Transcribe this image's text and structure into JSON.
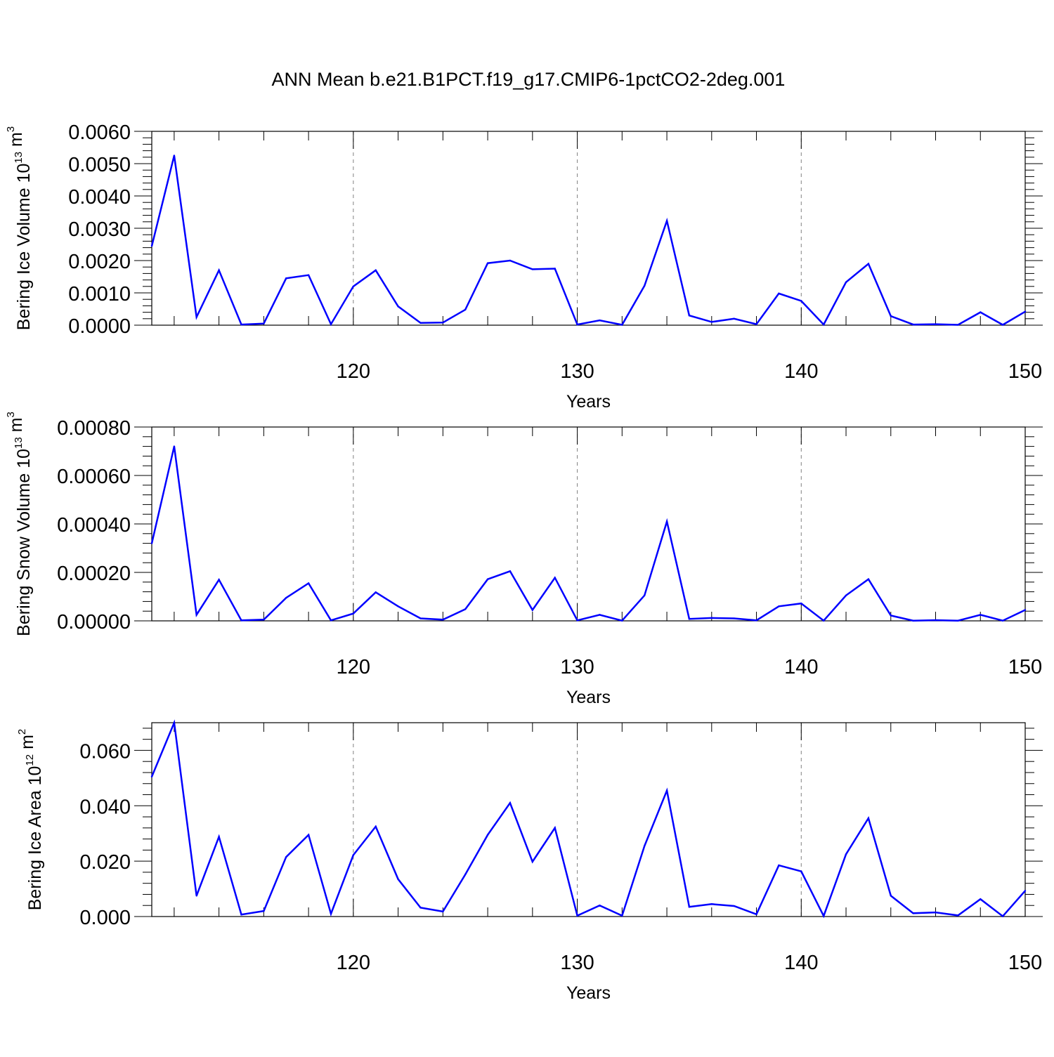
{
  "title": "ANN Mean b.e21.B1PCT.f19_g17.CMIP6-1pctCO2-2deg.001",
  "colors": {
    "line": "#0000ff",
    "axis": "#000000",
    "grid": "#808080"
  },
  "chart_data": [
    {
      "type": "line",
      "ylabel_prefix": "Bering Ice Volume 10",
      "ylabel_exp": "13",
      "ylabel_unit": " m",
      "ylabel_unit_exp": "3",
      "xlabel": "Years",
      "xlim": [
        111,
        150
      ],
      "ylim": [
        0,
        0.006
      ],
      "grid": "vertical dashed at major x ticks",
      "x_ticks": [
        "120",
        "130",
        "140",
        "150"
      ],
      "y_ticks": [
        "0.0000",
        "0.0010",
        "0.0020",
        "0.0030",
        "0.0040",
        "0.0050",
        "0.0060"
      ],
      "x": [
        111,
        112,
        113,
        114,
        115,
        116,
        117,
        118,
        119,
        120,
        121,
        122,
        123,
        124,
        125,
        126,
        127,
        128,
        129,
        130,
        131,
        132,
        133,
        134,
        135,
        136,
        137,
        138,
        139,
        140,
        141,
        142,
        143,
        144,
        145,
        146,
        147,
        148,
        149,
        150
      ],
      "values": [
        0.00245,
        0.00525,
        0.00025,
        0.0017,
        2e-05,
        5e-05,
        0.00145,
        0.00155,
        3e-05,
        0.0012,
        0.0017,
        0.00058,
        7e-05,
        8e-05,
        0.00048,
        0.00192,
        0.002,
        0.00173,
        0.00175,
        2e-05,
        0.00015,
        1e-05,
        0.00122,
        0.00323,
        0.0003,
        0.0001,
        0.0002,
        3e-05,
        0.00098,
        0.00075,
        2e-05,
        0.00133,
        0.0019,
        0.00028,
        2e-05,
        3e-05,
        1e-05,
        0.0004,
        1e-05,
        0.00042
      ]
    },
    {
      "type": "line",
      "ylabel_prefix": "Bering Snow Volume 10",
      "ylabel_exp": "13",
      "ylabel_unit": " m",
      "ylabel_unit_exp": "3",
      "xlabel": "Years",
      "xlim": [
        111,
        150
      ],
      "ylim": [
        0,
        0.0008
      ],
      "grid": "vertical dashed at major x ticks",
      "x_ticks": [
        "120",
        "130",
        "140",
        "150"
      ],
      "y_ticks": [
        "0.00000",
        "0.00020",
        "0.00040",
        "0.00060",
        "0.00080"
      ],
      "x": [
        111,
        112,
        113,
        114,
        115,
        116,
        117,
        118,
        119,
        120,
        121,
        122,
        123,
        124,
        125,
        126,
        127,
        128,
        129,
        130,
        131,
        132,
        133,
        134,
        135,
        136,
        137,
        138,
        139,
        140,
        141,
        142,
        143,
        144,
        145,
        146,
        147,
        148,
        149,
        150
      ],
      "values": [
        0.00032,
        0.00072,
        2.5e-05,
        0.00017,
        2e-06,
        5e-06,
        9.5e-05,
        0.000155,
        2e-06,
        3e-05,
        0.000118,
        6e-05,
        1e-05,
        5e-06,
        4.8e-05,
        0.000172,
        0.000205,
        4.5e-05,
        0.000178,
        2e-06,
        2.5e-05,
        1e-06,
        0.000105,
        0.00041,
        8e-06,
        1.2e-05,
        1e-05,
        2e-06,
        6e-05,
        7.2e-05,
        1e-06,
        0.000105,
        0.000172,
        2.2e-05,
        1e-06,
        3e-06,
        1e-06,
        2.5e-05,
        1e-06,
        4.5e-05
      ]
    },
    {
      "type": "line",
      "ylabel_prefix": "Bering Ice Area 10",
      "ylabel_exp": "12",
      "ylabel_unit": " m",
      "ylabel_unit_exp": "2",
      "xlabel": "Years",
      "xlim": [
        111,
        150
      ],
      "ylim": [
        0,
        0.07
      ],
      "grid": "vertical dashed at major x ticks",
      "x_ticks": [
        "120",
        "130",
        "140",
        "150"
      ],
      "y_ticks": [
        "0.000",
        "0.020",
        "0.040",
        "0.060"
      ],
      "x": [
        111,
        112,
        113,
        114,
        115,
        116,
        117,
        118,
        119,
        120,
        121,
        122,
        123,
        124,
        125,
        126,
        127,
        128,
        129,
        130,
        131,
        132,
        133,
        134,
        135,
        136,
        137,
        138,
        139,
        140,
        141,
        142,
        143,
        144,
        145,
        146,
        147,
        148,
        149,
        150
      ],
      "values": [
        0.0505,
        0.07,
        0.0075,
        0.0288,
        0.0007,
        0.002,
        0.0215,
        0.0295,
        0.001,
        0.0222,
        0.0325,
        0.0135,
        0.0032,
        0.0018,
        0.0152,
        0.0295,
        0.041,
        0.0198,
        0.032,
        0.0003,
        0.004,
        0.0003,
        0.0255,
        0.0455,
        0.0035,
        0.0045,
        0.0038,
        0.0008,
        0.0185,
        0.0163,
        0.0002,
        0.0225,
        0.0355,
        0.0075,
        0.0012,
        0.0015,
        0.0004,
        0.0063,
        0.0001,
        0.0093
      ]
    }
  ]
}
